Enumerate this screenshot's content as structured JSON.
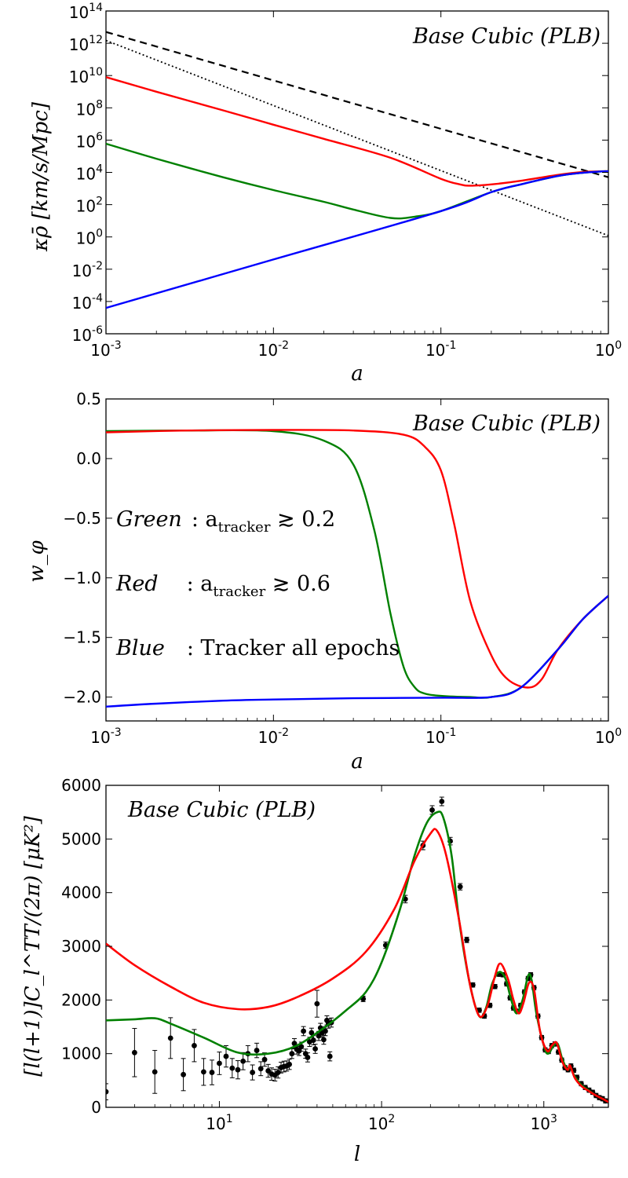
{
  "chart_data": [
    {
      "type": "line",
      "xscale": "log",
      "yscale": "log",
      "xlim": [
        0.001,
        1
      ],
      "ylim": [
        1e-06,
        100000000000000.0
      ],
      "xlabel": "a",
      "ylabel": "κρ̄ [km/s/Mpc]",
      "annotation": "Base Cubic (PLB)",
      "x_ticks": [
        "10^-3",
        "10^-2",
        "10^-1",
        "10^0"
      ],
      "y_ticks": [
        "10^-6",
        "10^-4",
        "10^-2",
        "10^0",
        "10^2",
        "10^4",
        "10^6",
        "10^8",
        "10^10",
        "10^12",
        "10^14"
      ],
      "series": [
        {
          "name": "dashed",
          "color": "#000000",
          "style": "dashed",
          "x": [
            0.001,
            1
          ],
          "y": [
            5000000000000.0,
            5000.0
          ]
        },
        {
          "name": "dotted",
          "color": "#000000",
          "style": "dotted",
          "x": [
            0.001,
            1
          ],
          "y": [
            1500000000000.0,
            1.2
          ]
        },
        {
          "name": "red",
          "color": "#ff0000",
          "style": "solid",
          "x": [
            0.001,
            0.002,
            0.005,
            0.01,
            0.02,
            0.05,
            0.1,
            0.13,
            0.15,
            0.2,
            0.3,
            0.5,
            0.7,
            1.0
          ],
          "y": [
            8000000000.0,
            1000000000.0,
            70000000.0,
            9000000.0,
            1200000.0,
            80000.0,
            4000.0,
            1800,
            1500,
            1800,
            3000,
            7000,
            10500.0,
            12000.0
          ]
        },
        {
          "name": "green",
          "color": "#008000",
          "style": "solid",
          "x": [
            0.001,
            0.002,
            0.005,
            0.01,
            0.02,
            0.03,
            0.05,
            0.07,
            0.1,
            0.2,
            0.3,
            0.5,
            0.7,
            1.0
          ],
          "y": [
            600000.0,
            70000.0,
            5000.0,
            800,
            150,
            50,
            15,
            18,
            40,
            600,
            1800,
            6000,
            9500,
            12000.0
          ]
        },
        {
          "name": "blue",
          "color": "#0000ff",
          "style": "solid",
          "x": [
            0.001,
            0.01,
            0.1,
            0.2,
            0.3,
            0.5,
            0.7,
            1.0
          ],
          "y": [
            4e-05,
            0.04,
            40,
            600,
            1800,
            6000,
            9500,
            12000.0
          ]
        }
      ]
    },
    {
      "type": "line",
      "xscale": "log",
      "yscale": "linear",
      "xlim": [
        0.001,
        1
      ],
      "ylim": [
        -2.2,
        0.5
      ],
      "xlabel": "a",
      "ylabel": "w_φ",
      "annotation": "Base Cubic (PLB)",
      "x_ticks": [
        "10^-3",
        "10^-2",
        "10^-1",
        "10^0"
      ],
      "y_ticks": [
        "0.5",
        "0.0",
        "−0.5",
        "−1.0",
        "−1.5",
        "−2.0"
      ],
      "legend_text": [
        {
          "name": "Green",
          "desc": ": a",
          "sub": "tracker",
          "rel": " ≳ 0.2",
          "color": "#008000"
        },
        {
          "name": "Red",
          "desc": ": a",
          "sub": "tracker",
          "rel": " ≳ 0.6",
          "color": "#ff0000"
        },
        {
          "name": "Blue",
          "desc": ": Tracker all epochs",
          "sub": "",
          "rel": "",
          "color": "#0000ff"
        }
      ],
      "series": [
        {
          "name": "green",
          "color": "#008000",
          "x": [
            0.001,
            0.003,
            0.01,
            0.02,
            0.03,
            0.04,
            0.05,
            0.06,
            0.07,
            0.08,
            0.1,
            0.15,
            0.2,
            0.3,
            0.5,
            0.7,
            1.0
          ],
          "y": [
            0.23,
            0.235,
            0.23,
            0.15,
            -0.05,
            -0.6,
            -1.3,
            -1.75,
            -1.92,
            -1.97,
            -1.99,
            -2.0,
            -2.0,
            -1.92,
            -1.6,
            -1.35,
            -1.15
          ]
        },
        {
          "name": "red",
          "color": "#ff0000",
          "x": [
            0.001,
            0.003,
            0.01,
            0.03,
            0.06,
            0.08,
            0.1,
            0.12,
            0.15,
            0.2,
            0.25,
            0.33,
            0.4,
            0.5,
            0.7,
            1.0
          ],
          "y": [
            0.22,
            0.235,
            0.24,
            0.235,
            0.2,
            0.1,
            -0.1,
            -0.55,
            -1.2,
            -1.65,
            -1.85,
            -1.92,
            -1.85,
            -1.6,
            -1.35,
            -1.15
          ]
        },
        {
          "name": "blue",
          "color": "#0000ff",
          "x": [
            0.001,
            0.002,
            0.005,
            0.01,
            0.03,
            0.1,
            0.2,
            0.3,
            0.5,
            0.7,
            1.0
          ],
          "y": [
            -2.08,
            -2.055,
            -2.03,
            -2.02,
            -2.01,
            -2.005,
            -2.0,
            -1.92,
            -1.6,
            -1.35,
            -1.15
          ]
        }
      ]
    },
    {
      "type": "line",
      "xscale": "log",
      "yscale": "linear",
      "xlim": [
        2,
        2500
      ],
      "ylim": [
        0,
        6000
      ],
      "xlabel": "l",
      "ylabel": "[l(l+1)]C_l^TT/(2π) [μK²]",
      "annotation": "Base Cubic (PLB)",
      "x_ticks": [
        "10^1",
        "10^2",
        "10^3"
      ],
      "y_ticks": [
        "0",
        "1000",
        "2000",
        "3000",
        "4000",
        "5000",
        "6000"
      ],
      "series": [
        {
          "name": "red",
          "color": "#ff0000",
          "x": [
            2,
            3,
            5,
            8,
            13,
            20,
            30,
            50,
            80,
            120,
            160,
            200,
            220,
            250,
            300,
            350,
            400,
            450,
            500,
            540,
            600,
            650,
            700,
            750,
            810,
            870,
            950,
            1050,
            1120,
            1200,
            1300,
            1400,
            1450,
            1550,
            1700,
            1900,
            2100,
            2300,
            2500
          ],
          "y": [
            3050,
            2650,
            2250,
            1950,
            1830,
            1870,
            2050,
            2400,
            2900,
            3700,
            4600,
            5100,
            5150,
            4700,
            3500,
            2300,
            1700,
            1900,
            2450,
            2680,
            2400,
            2000,
            1750,
            1950,
            2320,
            2200,
            1400,
            1050,
            1150,
            1200,
            850,
            700,
            780,
            550,
            400,
            300,
            220,
            160,
            100
          ]
        },
        {
          "name": "green",
          "color": "#008000",
          "x": [
            2,
            3,
            4,
            5,
            8,
            13,
            20,
            30,
            45,
            60,
            80,
            100,
            130,
            160,
            190,
            220,
            240,
            270,
            300,
            350,
            400,
            440,
            480,
            530,
            580,
            630,
            680,
            740,
            800,
            840,
            900,
            1000,
            1060,
            1150,
            1220,
            1300,
            1400,
            1450,
            1550,
            1700,
            1900,
            2100,
            2300,
            2500
          ],
          "y": [
            1620,
            1640,
            1660,
            1560,
            1300,
            1020,
            1000,
            1150,
            1500,
            1800,
            2150,
            2700,
            3700,
            4700,
            5300,
            5500,
            5400,
            4700,
            3500,
            2300,
            1700,
            1850,
            2300,
            2520,
            2400,
            2000,
            1750,
            2000,
            2450,
            2380,
            1750,
            1150,
            1000,
            1150,
            1180,
            900,
            700,
            750,
            580,
            420,
            310,
            220,
            160,
            100
          ]
        }
      ],
      "data_points": [
        {
          "x": 2,
          "y": 290,
          "err": 150
        },
        {
          "x": 3,
          "y": 1020,
          "err": 450
        },
        {
          "x": 4,
          "y": 660,
          "err": 400
        },
        {
          "x": 5,
          "y": 1290,
          "err": 380
        },
        {
          "x": 6,
          "y": 610,
          "err": 300
        },
        {
          "x": 7,
          "y": 1150,
          "err": 300
        },
        {
          "x": 8,
          "y": 660,
          "err": 250
        },
        {
          "x": 9,
          "y": 650,
          "err": 230
        },
        {
          "x": 10,
          "y": 820,
          "err": 210
        },
        {
          "x": 11,
          "y": 950,
          "err": 200
        },
        {
          "x": 12,
          "y": 730,
          "err": 180
        },
        {
          "x": 13,
          "y": 700,
          "err": 170
        },
        {
          "x": 14,
          "y": 860,
          "err": 160
        },
        {
          "x": 15,
          "y": 1000,
          "err": 150
        },
        {
          "x": 16,
          "y": 650,
          "err": 140
        },
        {
          "x": 17,
          "y": 1060,
          "err": 135
        },
        {
          "x": 18,
          "y": 720,
          "err": 130
        },
        {
          "x": 19,
          "y": 890,
          "err": 125
        },
        {
          "x": 20,
          "y": 680,
          "err": 120
        },
        {
          "x": 21,
          "y": 620,
          "err": 115
        },
        {
          "x": 22,
          "y": 600,
          "err": 110
        },
        {
          "x": 23,
          "y": 650,
          "err": 105
        },
        {
          "x": 24,
          "y": 740,
          "err": 100
        },
        {
          "x": 25,
          "y": 760,
          "err": 100
        },
        {
          "x": 26,
          "y": 770,
          "err": 95
        },
        {
          "x": 27,
          "y": 800,
          "err": 95
        },
        {
          "x": 28,
          "y": 1000,
          "err": 90
        },
        {
          "x": 29,
          "y": 1190,
          "err": 90
        },
        {
          "x": 30,
          "y": 1080,
          "err": 88
        },
        {
          "x": 31,
          "y": 1050,
          "err": 85
        },
        {
          "x": 32,
          "y": 1130,
          "err": 85
        },
        {
          "x": 33,
          "y": 1420,
          "err": 85
        },
        {
          "x": 34,
          "y": 1000,
          "err": 85
        },
        {
          "x": 35,
          "y": 930,
          "err": 85
        },
        {
          "x": 36,
          "y": 1220,
          "err": 85
        },
        {
          "x": 37,
          "y": 1390,
          "err": 85
        },
        {
          "x": 38,
          "y": 1250,
          "err": 85
        },
        {
          "x": 39,
          "y": 1090,
          "err": 85
        },
        {
          "x": 40,
          "y": 1930,
          "err": 250
        },
        {
          "x": 41,
          "y": 1330,
          "err": 85
        },
        {
          "x": 42,
          "y": 1480,
          "err": 85
        },
        {
          "x": 43,
          "y": 1390,
          "err": 85
        },
        {
          "x": 44,
          "y": 1260,
          "err": 85
        },
        {
          "x": 45,
          "y": 1420,
          "err": 85
        },
        {
          "x": 46,
          "y": 1620,
          "err": 85
        },
        {
          "x": 47,
          "y": 1560,
          "err": 85
        },
        {
          "x": 48,
          "y": 950,
          "err": 85
        },
        {
          "x": 49,
          "y": 1580,
          "err": 85
        },
        {
          "x": 77,
          "y": 2020,
          "err": 50
        },
        {
          "x": 106,
          "y": 3020,
          "err": 60
        },
        {
          "x": 140,
          "y": 3880,
          "err": 70
        },
        {
          "x": 180,
          "y": 4880,
          "err": 80
        },
        {
          "x": 205,
          "y": 5540,
          "err": 80
        },
        {
          "x": 235,
          "y": 5700,
          "err": 80
        },
        {
          "x": 265,
          "y": 4960,
          "err": 70
        },
        {
          "x": 305,
          "y": 4110,
          "err": 60
        },
        {
          "x": 335,
          "y": 3120,
          "err": 50
        },
        {
          "x": 365,
          "y": 2280,
          "err": 40
        },
        {
          "x": 400,
          "y": 1810,
          "err": 40
        },
        {
          "x": 430,
          "y": 1700,
          "err": 40
        },
        {
          "x": 465,
          "y": 1900,
          "err": 40
        },
        {
          "x": 500,
          "y": 2250,
          "err": 40
        },
        {
          "x": 530,
          "y": 2480,
          "err": 40
        },
        {
          "x": 560,
          "y": 2470,
          "err": 40
        },
        {
          "x": 590,
          "y": 2300,
          "err": 40
        },
        {
          "x": 620,
          "y": 2040,
          "err": 40
        },
        {
          "x": 650,
          "y": 1850,
          "err": 40
        },
        {
          "x": 690,
          "y": 1790,
          "err": 40
        },
        {
          "x": 720,
          "y": 1900,
          "err": 40
        },
        {
          "x": 760,
          "y": 2150,
          "err": 40
        },
        {
          "x": 800,
          "y": 2400,
          "err": 40
        },
        {
          "x": 830,
          "y": 2470,
          "err": 40
        },
        {
          "x": 870,
          "y": 2230,
          "err": 40
        },
        {
          "x": 920,
          "y": 1700,
          "err": 40
        },
        {
          "x": 970,
          "y": 1300,
          "err": 40
        },
        {
          "x": 1020,
          "y": 1070,
          "err": 40
        },
        {
          "x": 1070,
          "y": 1040,
          "err": 40
        },
        {
          "x": 1120,
          "y": 1150,
          "err": 40
        },
        {
          "x": 1170,
          "y": 1180,
          "err": 40
        },
        {
          "x": 1230,
          "y": 1030,
          "err": 40
        },
        {
          "x": 1290,
          "y": 880,
          "err": 40
        },
        {
          "x": 1350,
          "y": 740,
          "err": 40
        },
        {
          "x": 1410,
          "y": 700,
          "err": 40
        },
        {
          "x": 1470,
          "y": 770,
          "err": 40
        },
        {
          "x": 1530,
          "y": 690,
          "err": 40
        },
        {
          "x": 1600,
          "y": 560,
          "err": 40
        },
        {
          "x": 1700,
          "y": 440,
          "err": 40
        },
        {
          "x": 1800,
          "y": 370,
          "err": 40
        },
        {
          "x": 1900,
          "y": 320,
          "err": 40
        },
        {
          "x": 2000,
          "y": 280,
          "err": 40
        },
        {
          "x": 2100,
          "y": 220,
          "err": 40
        },
        {
          "x": 2200,
          "y": 180,
          "err": 40
        },
        {
          "x": 2300,
          "y": 160,
          "err": 40
        },
        {
          "x": 2400,
          "y": 120,
          "err": 40
        }
      ]
    }
  ]
}
